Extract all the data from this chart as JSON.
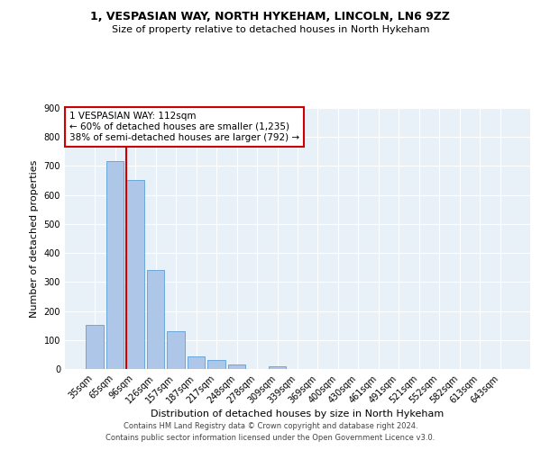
{
  "title": "1, VESPASIAN WAY, NORTH HYKEHAM, LINCOLN, LN6 9ZZ",
  "subtitle": "Size of property relative to detached houses in North Hykeham",
  "xlabel": "Distribution of detached houses by size in North Hykeham",
  "ylabel": "Number of detached properties",
  "categories": [
    "35sqm",
    "65sqm",
    "96sqm",
    "126sqm",
    "157sqm",
    "187sqm",
    "217sqm",
    "248sqm",
    "278sqm",
    "309sqm",
    "339sqm",
    "369sqm",
    "400sqm",
    "430sqm",
    "461sqm",
    "491sqm",
    "521sqm",
    "552sqm",
    "582sqm",
    "613sqm",
    "643sqm"
  ],
  "bar_heights": [
    152,
    716,
    652,
    340,
    130,
    43,
    32,
    15,
    0,
    10,
    0,
    0,
    0,
    0,
    0,
    0,
    0,
    0,
    0,
    0,
    0
  ],
  "bar_color": "#aec6e8",
  "bar_edge_color": "#5a9fd4",
  "ylim": [
    0,
    900
  ],
  "yticks": [
    0,
    100,
    200,
    300,
    400,
    500,
    600,
    700,
    800,
    900
  ],
  "vline_color": "#cc0000",
  "annotation_title": "1 VESPASIAN WAY: 112sqm",
  "annotation_line1": "← 60% of detached houses are smaller (1,235)",
  "annotation_line2": "38% of semi-detached houses are larger (792) →",
  "annotation_box_color": "#cc0000",
  "background_color": "#e8f0f8",
  "footer1": "Contains HM Land Registry data © Crown copyright and database right 2024.",
  "footer2": "Contains public sector information licensed under the Open Government Licence v3.0."
}
